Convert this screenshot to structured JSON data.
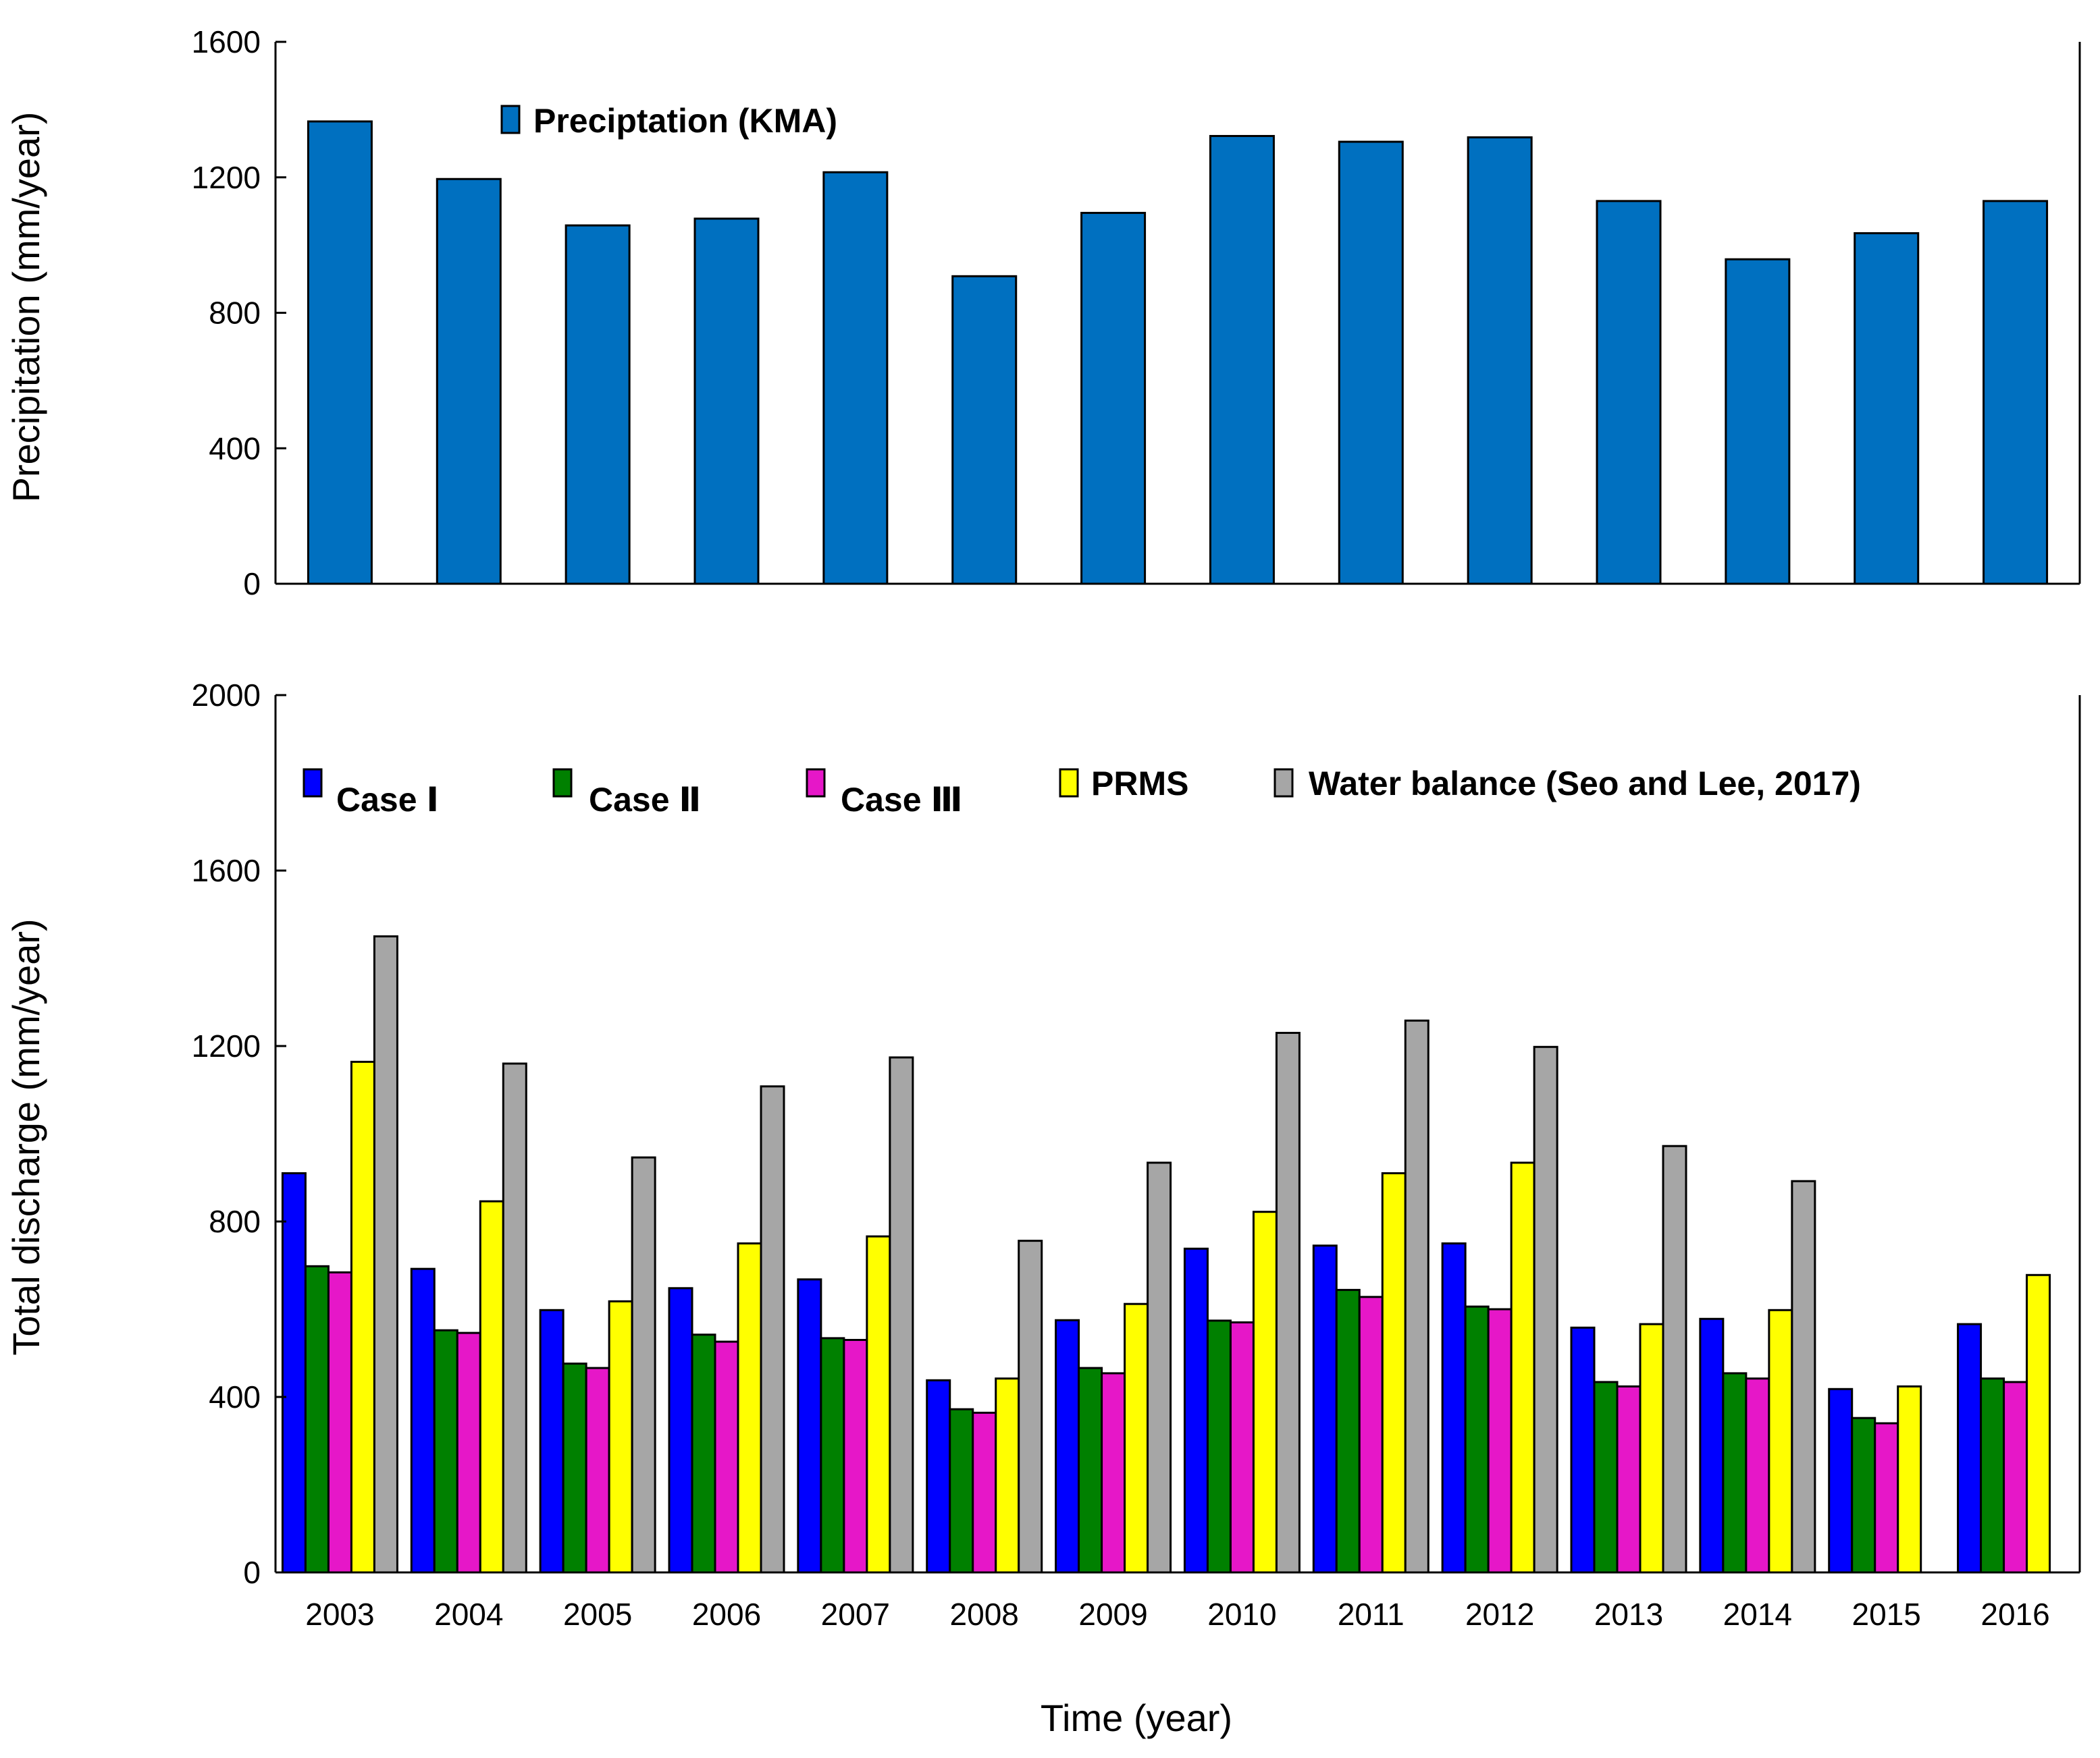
{
  "chart_data": [
    {
      "type": "bar",
      "title": "",
      "xlabel": "",
      "ylabel": "Precipitation (mm/year)",
      "ylim": [
        0,
        1600
      ],
      "yticks": [
        0,
        400,
        800,
        1200,
        1600
      ],
      "categories": [
        "2003",
        "2004",
        "2005",
        "2006",
        "2007",
        "2008",
        "2009",
        "2010",
        "2011",
        "2012",
        "2013",
        "2014",
        "2015",
        "2016"
      ],
      "series": [
        {
          "name": "Preciptation (KMA)",
          "color": "#0070C0",
          "values": [
            1365,
            1195,
            1058,
            1078,
            1215,
            908,
            1095,
            1322,
            1305,
            1318,
            1130,
            958,
            1035,
            1130
          ]
        }
      ],
      "legend_position": "top-left"
    },
    {
      "type": "bar",
      "title": "",
      "xlabel": "Time (year)",
      "ylabel": "Total discharge (mm/year)",
      "ylim": [
        0,
        2000
      ],
      "yticks": [
        0,
        400,
        800,
        1200,
        1600,
        2000
      ],
      "categories": [
        "2003",
        "2004",
        "2005",
        "2006",
        "2007",
        "2008",
        "2009",
        "2010",
        "2011",
        "2012",
        "2013",
        "2014",
        "2015",
        "2016"
      ],
      "series": [
        {
          "name": "Case Ⅰ",
          "color": "#0000FF",
          "values": [
            910,
            692,
            598,
            648,
            668,
            438,
            575,
            738,
            745,
            750,
            558,
            578,
            418,
            566
          ]
        },
        {
          "name": "Case Ⅱ",
          "color": "#008000",
          "values": [
            698,
            552,
            476,
            542,
            534,
            372,
            466,
            574,
            644,
            606,
            434,
            454,
            352,
            442
          ]
        },
        {
          "name": "Case Ⅲ",
          "color": "#E617C8",
          "values": [
            684,
            546,
            466,
            526,
            530,
            364,
            454,
            570,
            628,
            600,
            424,
            442,
            340,
            434
          ]
        },
        {
          "name": "PRMS",
          "color": "#FFFF00",
          "values": [
            1164,
            846,
            618,
            750,
            766,
            442,
            612,
            822,
            910,
            934,
            566,
            598,
            424,
            678
          ]
        },
        {
          "name": "Water balance (Seo and Lee, 2017)",
          "color": "#A6A6A6",
          "values": [
            1450,
            1160,
            946,
            1108,
            1174,
            756,
            934,
            1230,
            1258,
            1198,
            972,
            892,
            null,
            null
          ]
        }
      ],
      "legend_position": "top"
    }
  ]
}
